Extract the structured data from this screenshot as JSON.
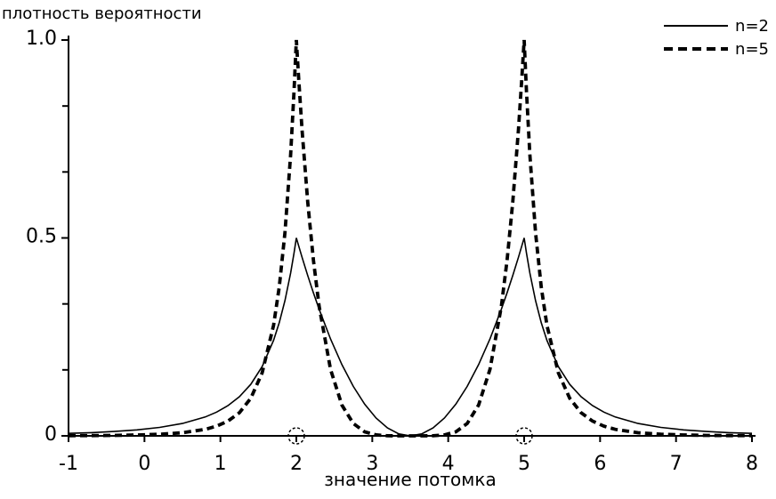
{
  "chart_data": {
    "type": "line",
    "title": "",
    "ylabel": "плотность вероятности",
    "xlabel": "значение потомка",
    "xlim": [
      -1,
      8
    ],
    "ylim": [
      0,
      1
    ],
    "x_ticks": [
      -1,
      0,
      1,
      2,
      3,
      4,
      5,
      6,
      7,
      8
    ],
    "y_major_ticks": [
      {
        "value": 0,
        "label": "0"
      },
      {
        "value": 0.5,
        "label": "0.5"
      },
      {
        "value": 1,
        "label": "1.0"
      }
    ],
    "y_minor_ticks": [
      0.1667,
      0.3333,
      0.6667,
      0.8333
    ],
    "grid": false,
    "legend_position": "top-right",
    "line_color": "#000000",
    "background_color": "#ffffff",
    "parent_markers_x": [
      2,
      5
    ],
    "x": [
      -1,
      -0.7,
      -0.4,
      -0.1,
      0.2,
      0.5,
      0.8,
      0.95,
      1.1,
      1.25,
      1.4,
      1.55,
      1.7,
      1.775,
      1.85,
      1.925,
      1.97,
      2,
      2.03,
      2.075,
      2.15,
      2.225,
      2.3,
      2.45,
      2.6,
      2.75,
      2.9,
      3.05,
      3.2,
      3.35,
      3.5,
      3.65,
      3.8,
      3.95,
      4.1,
      4.25,
      4.4,
      4.55,
      4.7,
      4.775,
      4.85,
      4.925,
      4.97,
      5,
      5.03,
      5.075,
      5.15,
      5.225,
      5.3,
      5.45,
      5.6,
      5.75,
      5.9,
      6.05,
      6.2,
      6.5,
      6.8,
      7.1,
      7.4,
      7.7,
      8
    ],
    "series": [
      {
        "name": "n=2",
        "style": "solid",
        "values": [
          0.0062,
          0.0081,
          0.0109,
          0.0151,
          0.0213,
          0.0313,
          0.0476,
          0.0599,
          0.0763,
          0.0988,
          0.1302,
          0.1751,
          0.2411,
          0.2859,
          0.3415,
          0.4114,
          0.4619,
          0.5,
          0.4802,
          0.4513,
          0.405,
          0.3613,
          0.32,
          0.245,
          0.18,
          0.125,
          0.08,
          0.045,
          0.02,
          0.005,
          0,
          0.005,
          0.02,
          0.045,
          0.08,
          0.125,
          0.18,
          0.245,
          0.32,
          0.3613,
          0.405,
          0.4513,
          0.4802,
          0.5,
          0.4619,
          0.4114,
          0.3415,
          0.2859,
          0.2411,
          0.1751,
          0.1302,
          0.0988,
          0.0763,
          0.0599,
          0.0476,
          0.0313,
          0.0213,
          0.0151,
          0.0109,
          0.0081,
          0.0062
        ]
      },
      {
        "name": "n=5",
        "style": "dashed",
        "values": [
          0.0005,
          0.0007,
          0.0012,
          0.0022,
          0.004,
          0.0078,
          0.0163,
          0.0244,
          0.0373,
          0.0585,
          0.0949,
          0.1594,
          0.2791,
          0.3759,
          0.5132,
          0.7107,
          0.8706,
          1,
          0.9039,
          0.7738,
          0.5905,
          0.4437,
          0.3277,
          0.1681,
          0.0778,
          0.0313,
          0.0102,
          0.0024,
          0.0003,
          0,
          0,
          0,
          0.0003,
          0.0024,
          0.0102,
          0.0313,
          0.0778,
          0.1681,
          0.3277,
          0.4437,
          0.5905,
          0.7738,
          0.9039,
          1,
          0.8706,
          0.7107,
          0.5132,
          0.3759,
          0.2791,
          0.1594,
          0.0949,
          0.0585,
          0.0373,
          0.0244,
          0.0163,
          0.0078,
          0.004,
          0.0022,
          0.0012,
          0.0007,
          0.0005
        ]
      }
    ]
  }
}
